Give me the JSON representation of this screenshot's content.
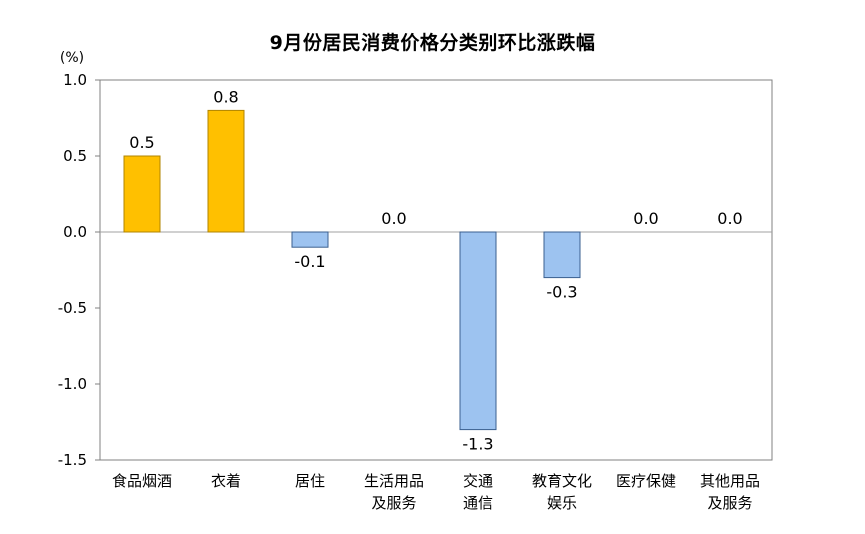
{
  "chart_data": {
    "type": "bar",
    "title": "9月份居民消费价格分类别环比涨跌幅",
    "unit_label": "(%)",
    "categories": [
      [
        "食品烟酒"
      ],
      [
        "衣着"
      ],
      [
        "居住"
      ],
      [
        "生活用品",
        "及服务"
      ],
      [
        "交通",
        "通信"
      ],
      [
        "教育文化",
        "娱乐"
      ],
      [
        "医疗保健"
      ],
      [
        "其他用品",
        "及服务"
      ]
    ],
    "values": [
      0.5,
      0.8,
      -0.1,
      0.0,
      -1.3,
      -0.3,
      0.0,
      0.0
    ],
    "data_labels": [
      "0.5",
      "0.8",
      "-0.1",
      "0.0",
      "-1.3",
      "-0.3",
      "0.0",
      "0.0"
    ],
    "ylim": [
      -1.5,
      1.0
    ],
    "y_ticks": [
      1.0,
      0.5,
      0.0,
      -0.5,
      -1.0,
      -1.5
    ],
    "y_tick_labels": [
      "1.0",
      "0.5",
      "0.0",
      "-0.5",
      "-1.0",
      "-1.5"
    ],
    "grid": false,
    "colors": {
      "positive_fill": "#FFC000",
      "positive_stroke": "#B08400",
      "negative_fill": "#9DC3F0",
      "negative_stroke": "#3A5F8F",
      "axis": "#808080",
      "zero_line": "#A0A0A0"
    }
  }
}
